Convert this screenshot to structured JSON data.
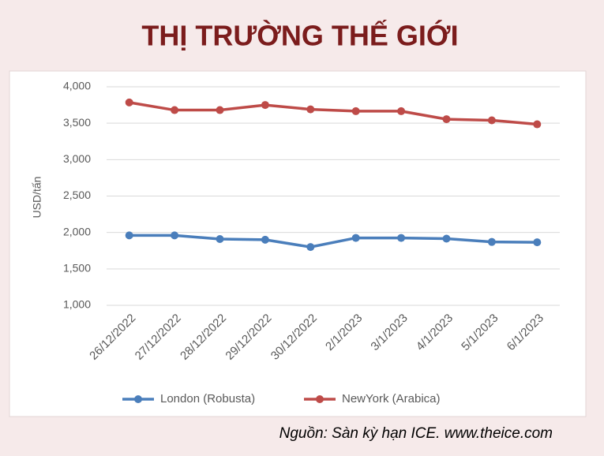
{
  "chart_data": {
    "type": "line",
    "title": "THỊ TRƯỜNG THẾ GIỚI",
    "y_label": "USD/tấn",
    "source": "Nguồn: Sàn kỳ hạn ICE. www.theice.com",
    "categories": [
      "26/12/2022",
      "27/12/2022",
      "28/12/2022",
      "29/12/2022",
      "30/12/2022",
      "2/1/2023",
      "3/1/2023",
      "4/1/2023",
      "5/1/2023",
      "6/1/2023"
    ],
    "series": [
      {
        "name": "London (Robusta)",
        "color": "#4a7ebb",
        "values": [
          1960,
          1960,
          1910,
          1900,
          1800,
          1925,
          1925,
          1915,
          1870,
          1865
        ]
      },
      {
        "name": "NewYork (Arabica)",
        "color": "#be4b48",
        "values": [
          3785,
          3680,
          3680,
          3750,
          3690,
          3665,
          3665,
          3555,
          3540,
          3485
        ]
      }
    ],
    "ylim": [
      1000,
      4000
    ],
    "yticks": [
      {
        "value": 1000,
        "label": "1,000"
      },
      {
        "value": 1500,
        "label": "1,500"
      },
      {
        "value": 2000,
        "label": "2,000"
      },
      {
        "value": 2500,
        "label": "2,500"
      },
      {
        "value": 3000,
        "label": "3,000"
      },
      {
        "value": 3500,
        "label": "3,500"
      },
      {
        "value": 4000,
        "label": "4,000"
      }
    ],
    "grid": true,
    "legend": "bottom"
  }
}
